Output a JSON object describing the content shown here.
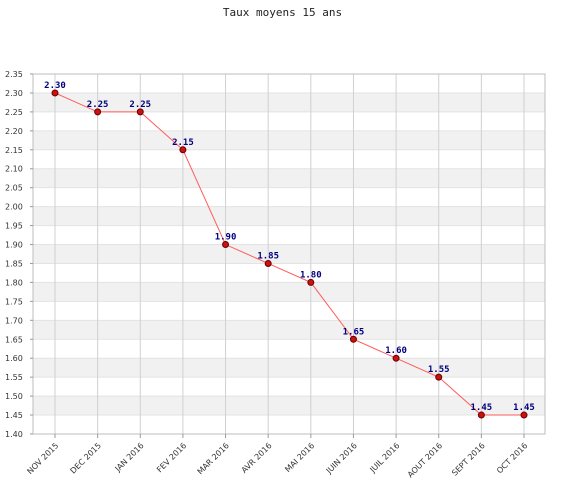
{
  "chart_data": {
    "type": "line",
    "title": "Taux moyens 15 ans",
    "xlabel": "",
    "ylabel": "",
    "categories": [
      "NOV 2015",
      "DEC 2015",
      "JAN 2016",
      "FEV 2016",
      "MAR 2016",
      "AVR 2016",
      "MAI 2016",
      "JUIN 2016",
      "JUIL 2016",
      "AOUT 2016",
      "SEPT 2016",
      "OCT 2016"
    ],
    "series": [
      {
        "values": [
          2.3,
          2.25,
          2.25,
          2.15,
          1.9,
          1.85,
          1.8,
          1.65,
          1.6,
          1.55,
          1.45,
          1.45
        ]
      }
    ],
    "data_labels": [
      "2.30",
      "2.25",
      "2.25",
      "2.15",
      "1.90",
      "1.85",
      "1.80",
      "1.65",
      "1.60",
      "1.55",
      "1.45",
      "1.45"
    ],
    "ylim": [
      1.4,
      2.35
    ],
    "yticks": [
      "1.40",
      "1.45",
      "1.50",
      "1.55",
      "1.60",
      "1.65",
      "1.70",
      "1.75",
      "1.80",
      "1.85",
      "1.90",
      "1.95",
      "2.00",
      "2.05",
      "2.10",
      "2.15",
      "2.20",
      "2.25",
      "2.30",
      "2.35"
    ],
    "grid": true,
    "legend": "none",
    "colors": {
      "line": "#ff5a5a",
      "marker_fill": "#cc1111",
      "marker_stroke": "#660000",
      "label": "#000080",
      "band": "#f1f1f1"
    }
  }
}
